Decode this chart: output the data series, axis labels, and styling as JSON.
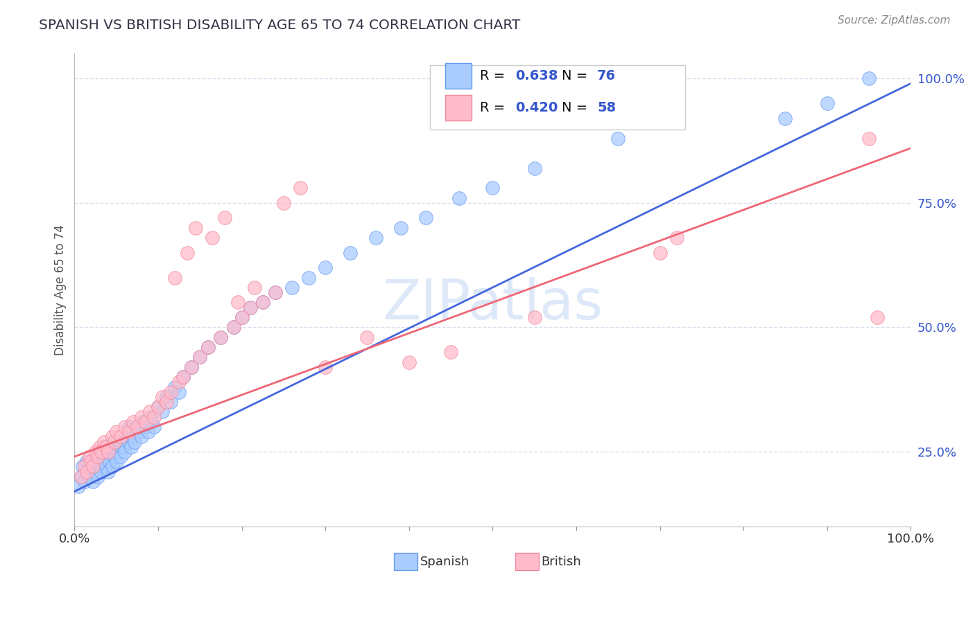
{
  "title": "SPANISH VS BRITISH DISABILITY AGE 65 TO 74 CORRELATION CHART",
  "source_text": "Source: ZipAtlas.com",
  "ylabel": "Disability Age 65 to 74",
  "xlim": [
    0.0,
    1.0
  ],
  "ylim": [
    0.1,
    1.05
  ],
  "xtick_labels": [
    "0.0%",
    "100.0%"
  ],
  "ytick_labels": [
    "25.0%",
    "50.0%",
    "75.0%",
    "100.0%"
  ],
  "ytick_positions": [
    0.25,
    0.5,
    0.75,
    1.0
  ],
  "spanish_color": "#aaccff",
  "spanish_edge_color": "#6699ee",
  "british_color": "#ffbbcc",
  "british_edge_color": "#ee8899",
  "spanish_line_color": "#4466dd",
  "british_line_color": "#ee6677",
  "title_color": "#333344",
  "legend_value_color": "#3355cc",
  "watermark_color": "#dde8f8",
  "R_spanish": 0.638,
  "N_spanish": 76,
  "R_british": 0.42,
  "N_british": 58,
  "spanish_slope": 0.82,
  "spanish_intercept": 0.17,
  "british_slope": 0.62,
  "british_intercept": 0.24,
  "gridline_color": "#ddddee",
  "gridline_style": "--",
  "background_color": "#ffffff",
  "spanish_x": [
    0.005,
    0.008,
    0.01,
    0.012,
    0.015,
    0.015,
    0.018,
    0.02,
    0.022,
    0.025,
    0.025,
    0.028,
    0.03,
    0.03,
    0.032,
    0.035,
    0.035,
    0.038,
    0.04,
    0.04,
    0.042,
    0.045,
    0.045,
    0.048,
    0.05,
    0.05,
    0.052,
    0.055,
    0.055,
    0.058,
    0.06,
    0.062,
    0.065,
    0.065,
    0.068,
    0.07,
    0.072,
    0.075,
    0.078,
    0.08,
    0.082,
    0.085,
    0.088,
    0.09,
    0.092,
    0.095,
    0.1,
    0.105,
    0.11,
    0.115,
    0.12,
    0.125,
    0.13,
    0.14,
    0.15,
    0.16,
    0.175,
    0.19,
    0.2,
    0.21,
    0.225,
    0.24,
    0.26,
    0.28,
    0.3,
    0.33,
    0.36,
    0.39,
    0.42,
    0.46,
    0.5,
    0.55,
    0.65,
    0.85,
    0.9,
    0.95
  ],
  "spanish_y": [
    0.18,
    0.2,
    0.22,
    0.19,
    0.21,
    0.23,
    0.2,
    0.22,
    0.19,
    0.21,
    0.24,
    0.2,
    0.22,
    0.25,
    0.21,
    0.23,
    0.26,
    0.22,
    0.21,
    0.24,
    0.23,
    0.22,
    0.25,
    0.24,
    0.23,
    0.26,
    0.25,
    0.24,
    0.27,
    0.26,
    0.25,
    0.28,
    0.27,
    0.3,
    0.26,
    0.28,
    0.27,
    0.3,
    0.29,
    0.28,
    0.31,
    0.3,
    0.29,
    0.32,
    0.31,
    0.3,
    0.34,
    0.33,
    0.36,
    0.35,
    0.38,
    0.37,
    0.4,
    0.42,
    0.44,
    0.46,
    0.48,
    0.5,
    0.52,
    0.54,
    0.55,
    0.57,
    0.58,
    0.6,
    0.62,
    0.65,
    0.68,
    0.7,
    0.72,
    0.76,
    0.78,
    0.82,
    0.88,
    0.92,
    0.95,
    1.0
  ],
  "british_x": [
    0.008,
    0.012,
    0.015,
    0.018,
    0.02,
    0.022,
    0.025,
    0.028,
    0.03,
    0.032,
    0.035,
    0.038,
    0.04,
    0.045,
    0.048,
    0.05,
    0.055,
    0.06,
    0.065,
    0.07,
    0.075,
    0.08,
    0.085,
    0.09,
    0.095,
    0.1,
    0.105,
    0.11,
    0.115,
    0.125,
    0.13,
    0.14,
    0.15,
    0.16,
    0.175,
    0.19,
    0.2,
    0.21,
    0.225,
    0.24,
    0.12,
    0.135,
    0.145,
    0.165,
    0.18,
    0.195,
    0.215,
    0.25,
    0.27,
    0.3,
    0.35,
    0.4,
    0.45,
    0.55,
    0.7,
    0.72,
    0.95,
    0.96
  ],
  "british_y": [
    0.2,
    0.22,
    0.21,
    0.24,
    0.23,
    0.22,
    0.25,
    0.24,
    0.26,
    0.25,
    0.27,
    0.26,
    0.25,
    0.28,
    0.27,
    0.29,
    0.28,
    0.3,
    0.29,
    0.31,
    0.3,
    0.32,
    0.31,
    0.33,
    0.32,
    0.34,
    0.36,
    0.35,
    0.37,
    0.39,
    0.4,
    0.42,
    0.44,
    0.46,
    0.48,
    0.5,
    0.52,
    0.54,
    0.55,
    0.57,
    0.6,
    0.65,
    0.7,
    0.68,
    0.72,
    0.55,
    0.58,
    0.75,
    0.78,
    0.42,
    0.48,
    0.43,
    0.45,
    0.52,
    0.65,
    0.68,
    0.88,
    0.52
  ]
}
